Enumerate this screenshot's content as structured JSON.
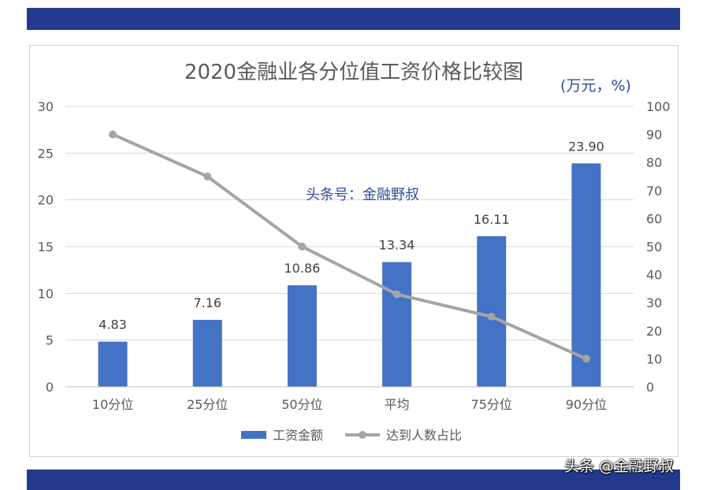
{
  "chart_data": {
    "type": "bar",
    "title": "2020金融业各分位值工资价格比较图",
    "unit_note": "(万元，%)",
    "watermark_center": "头条号：金融野叔",
    "categories": [
      "10分位",
      "25分位",
      "50分位",
      "平均",
      "75分位",
      "90分位"
    ],
    "series": [
      {
        "name": "工资金额",
        "type": "bar",
        "axis": "left",
        "color": "#4472c4",
        "values": [
          4.83,
          7.16,
          10.86,
          13.34,
          16.11,
          23.9
        ],
        "labels": [
          "4.83",
          "7.16",
          "10.86",
          "13.34",
          "16.11",
          "23.90"
        ]
      },
      {
        "name": "达到人数占比",
        "type": "line",
        "axis": "right",
        "color": "#a5a5a5",
        "values": [
          90,
          75,
          50,
          33,
          25,
          10
        ]
      }
    ],
    "y_left": {
      "ylim": [
        0,
        30
      ],
      "ticks": [
        "0",
        "5",
        "10",
        "15",
        "20",
        "25",
        "30"
      ]
    },
    "y_right": {
      "ylim": [
        0,
        100
      ],
      "ticks": [
        "0",
        "10",
        "20",
        "30",
        "40",
        "50",
        "60",
        "70",
        "80",
        "90",
        "100"
      ]
    },
    "grid": true,
    "legend_position": "bottom"
  },
  "colors": {
    "band": "#213a8c",
    "bar": "#4472c4",
    "line": "#a5a5a5"
  },
  "footer_watermark": "头条 @金融野叔"
}
